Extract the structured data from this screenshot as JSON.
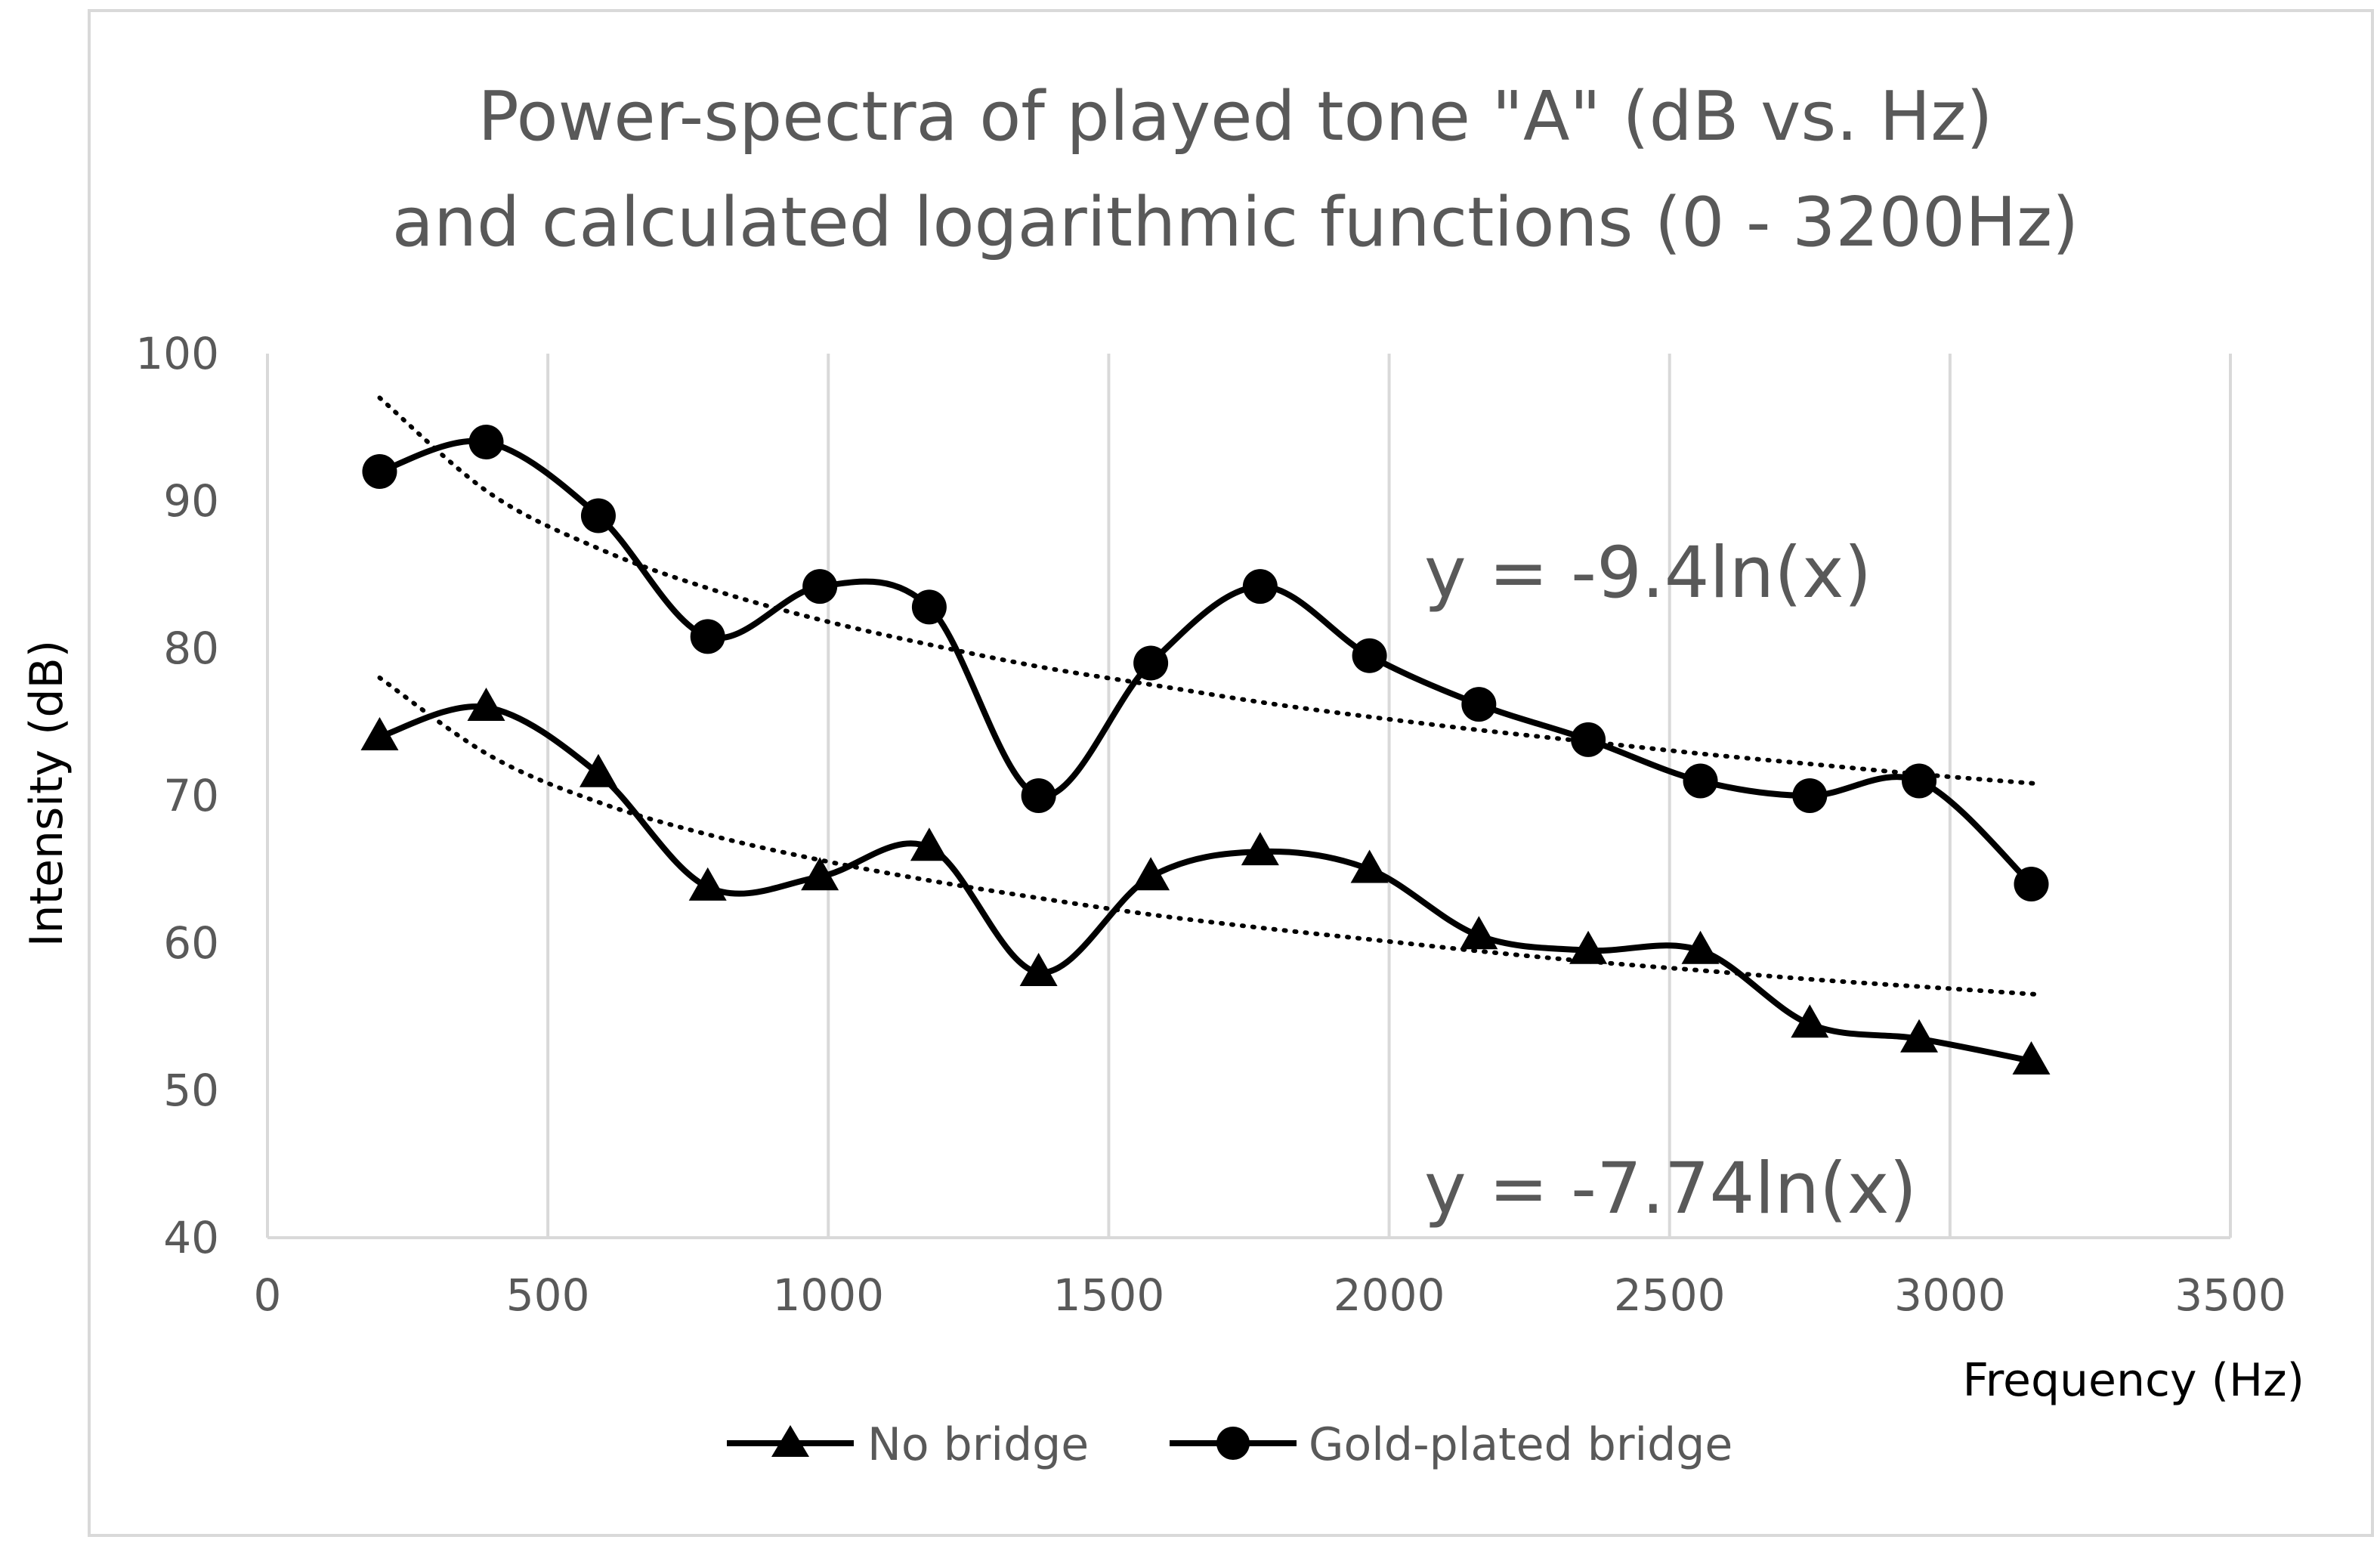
{
  "chart_data": {
    "type": "line",
    "title_lines": [
      "Power-spectra of played tone \"A\" (dB vs. Hz)",
      "and calculated logarithmic functions (0 - 3200Hz)"
    ],
    "xlabel": "Frequency (Hz)",
    "ylabel": "Intensity (dB)",
    "xlim": [
      0,
      3500
    ],
    "ylim": [
      40,
      100
    ],
    "x_ticks": [
      0,
      500,
      1000,
      1500,
      2000,
      2500,
      3000,
      3500
    ],
    "y_ticks": [
      40,
      50,
      60,
      70,
      80,
      90,
      100
    ],
    "x_tick_labels": [
      "0",
      "500",
      "1000",
      "1500",
      "2000",
      "2500",
      "3000",
      "3500"
    ],
    "y_tick_labels": [
      "40",
      "50",
      "60",
      "70",
      "80",
      "90",
      "100"
    ],
    "vertical_gridlines": true,
    "x": [
      200,
      390,
      590,
      785,
      985,
      1180,
      1375,
      1575,
      1770,
      1965,
      2160,
      2355,
      2555,
      2750,
      2945,
      3145
    ],
    "series": [
      {
        "name": "No bridge",
        "marker": "triangle",
        "values": [
          74,
          76,
          71.5,
          63.8,
          64.5,
          66.5,
          58,
          64.5,
          66.2,
          65,
          60.5,
          59.5,
          59.5,
          54.5,
          53.5,
          52
        ]
      },
      {
        "name": "Gold-plated bridge",
        "marker": "circle",
        "values": [
          92,
          94,
          89,
          80.8,
          84.2,
          82.8,
          70,
          79,
          84.2,
          79.5,
          76.2,
          73.8,
          71,
          70,
          71,
          64
        ]
      }
    ],
    "trendlines": [
      {
        "series": "Gold-plated bridge",
        "type": "logarithmic",
        "label": "y = -9.4ln(x)",
        "x_range": [
          200,
          3160
        ],
        "values": [
          97,
          90.5,
          86.7,
          84,
          81.9,
          80.2,
          78.7,
          77.5,
          76.3,
          75.3,
          74.4,
          73.6,
          72.8,
          72.1,
          71.4,
          70.8
        ]
      },
      {
        "series": "No bridge",
        "type": "logarithmic",
        "label": "y = -7.74ln(x)",
        "x_range": [
          200,
          3160
        ],
        "values": [
          78,
          72.7,
          69.5,
          67.3,
          65.6,
          64.2,
          63,
          61.9,
          61,
          60.2,
          59.4,
          58.7,
          58.1,
          57.5,
          57,
          56.5
        ]
      }
    ],
    "legend": [
      "No bridge",
      "Gold-plated bridge"
    ],
    "legend_position": "bottom"
  },
  "colors": {
    "series": "#000000",
    "text": "#595959",
    "grid": "#d9d9d9",
    "frame": "#d9d9d9"
  }
}
